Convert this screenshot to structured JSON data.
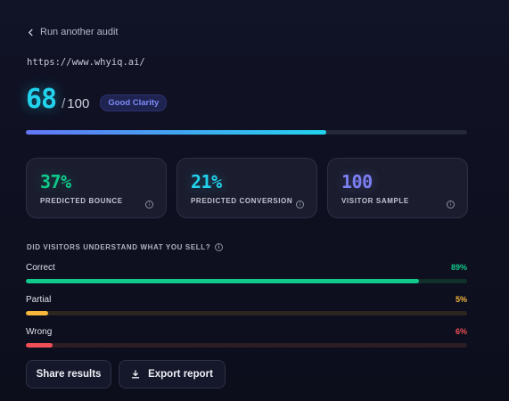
{
  "nav": {
    "back_label": "Run another audit"
  },
  "audit": {
    "url": "https://www.whyiq.ai/"
  },
  "score": {
    "value": "68",
    "max": "100",
    "badge": "Good Clarity",
    "fraction": 0.68
  },
  "metrics": [
    {
      "value": "37%",
      "label": "PREDICTED BOUNCE",
      "color": "#10c98a"
    },
    {
      "value": "21%",
      "label": "PREDICTED CONVERSION",
      "color": "#22d3ee"
    },
    {
      "value": "100",
      "label": "VISITOR SAMPLE",
      "color": "#7c7ff2"
    }
  ],
  "understanding": {
    "question": "DID VISITORS UNDERSTAND WHAT YOU SELL?",
    "answers": [
      {
        "label": "Correct",
        "percent": "89%",
        "value": 0.89,
        "color": "#10c98a",
        "track": "#11302c"
      },
      {
        "label": "Partial",
        "percent": "5%",
        "value": 0.05,
        "color": "#f6b73c",
        "track": "#2b2620"
      },
      {
        "label": "Wrong",
        "percent": "6%",
        "value": 0.06,
        "color": "#f04f56",
        "track": "#2d1d25"
      }
    ]
  },
  "actions": {
    "share_label": "Share results",
    "export_label": "Export report"
  },
  "icons": {
    "back": "chevron-left-icon",
    "info": "info-icon",
    "export": "download-icon"
  }
}
